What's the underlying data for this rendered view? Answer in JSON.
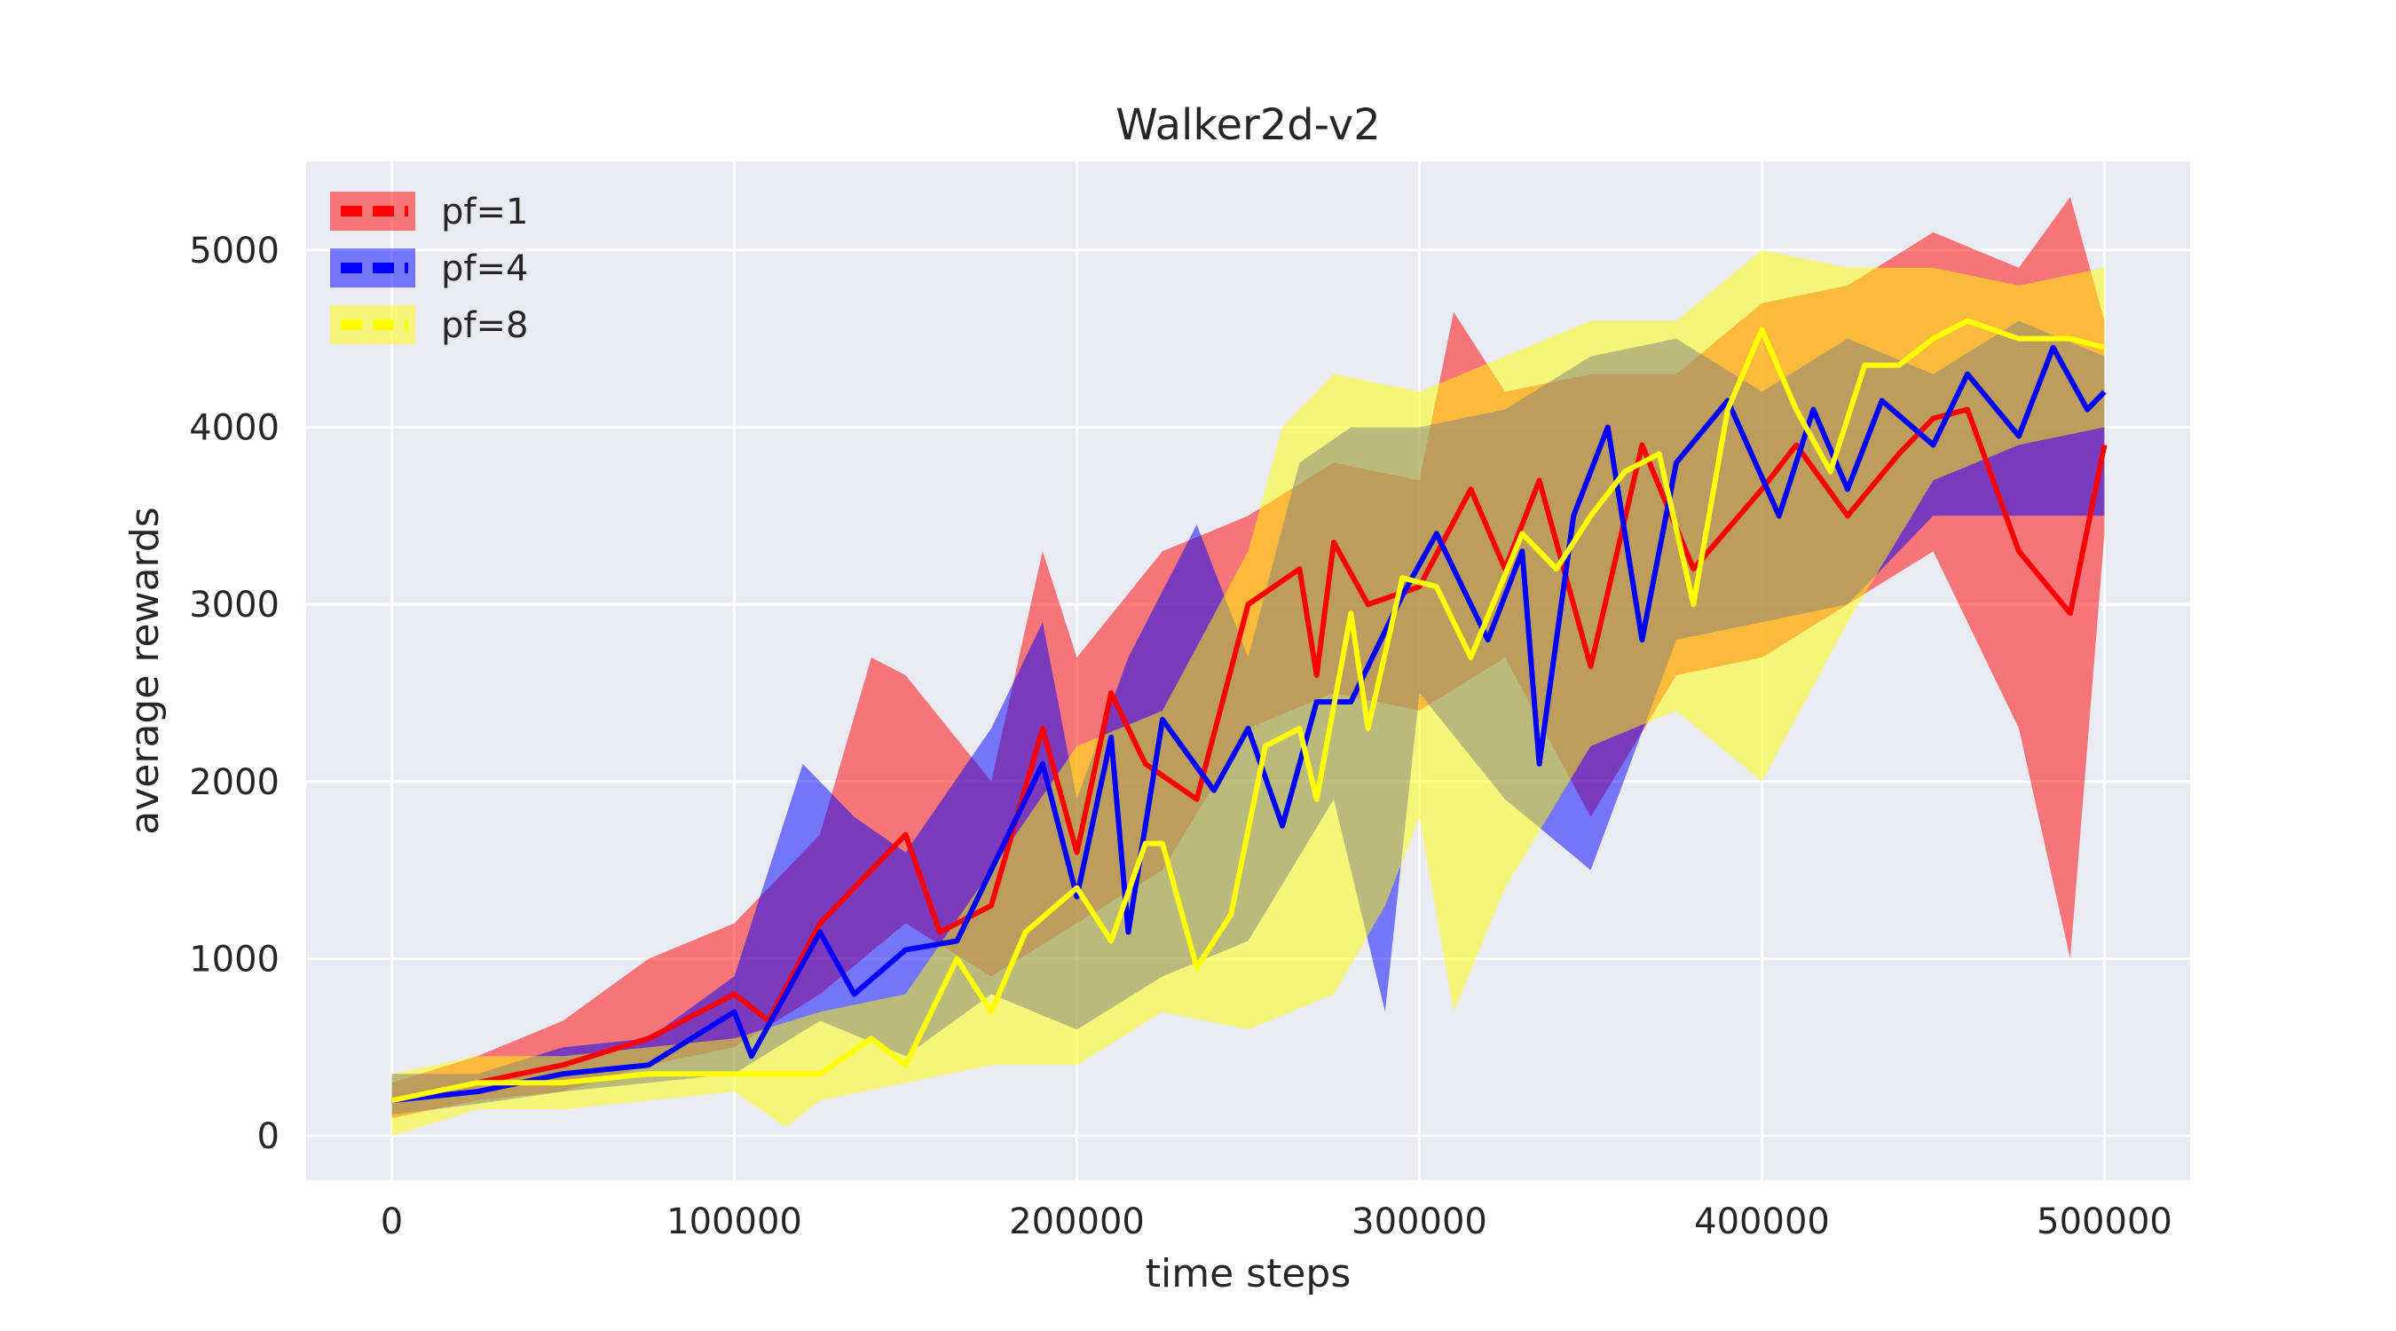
{
  "chart_data": {
    "type": "line",
    "title": "Walker2d-v2",
    "xlabel": "time steps",
    "ylabel": "average rewards",
    "xlim": [
      -25000,
      525000
    ],
    "ylim": [
      -250,
      5500
    ],
    "xticks": [
      0,
      100000,
      200000,
      300000,
      400000,
      500000
    ],
    "yticks": [
      0,
      1000,
      2000,
      3000,
      4000,
      5000
    ],
    "grid": true,
    "background": "#EAEAF2",
    "legend_position": "top-left",
    "series": [
      {
        "name": "pf=1",
        "color": "#FF0000",
        "band_color": "#FF0000",
        "points": [
          [
            0,
            200
          ],
          [
            25000,
            300
          ],
          [
            50000,
            400
          ],
          [
            75000,
            550
          ],
          [
            100000,
            800
          ],
          [
            110000,
            650
          ],
          [
            125000,
            1200
          ],
          [
            150000,
            1700
          ],
          [
            160000,
            1150
          ],
          [
            175000,
            1300
          ],
          [
            190000,
            2300
          ],
          [
            200000,
            1600
          ],
          [
            210000,
            2500
          ],
          [
            220000,
            2100
          ],
          [
            235000,
            1900
          ],
          [
            250000,
            3000
          ],
          [
            265000,
            3200
          ],
          [
            270000,
            2600
          ],
          [
            275000,
            3350
          ],
          [
            285000,
            3000
          ],
          [
            300000,
            3100
          ],
          [
            315000,
            3650
          ],
          [
            325000,
            3200
          ],
          [
            335000,
            3700
          ],
          [
            350000,
            2650
          ],
          [
            365000,
            3900
          ],
          [
            380000,
            3200
          ],
          [
            400000,
            3650
          ],
          [
            410000,
            3900
          ],
          [
            425000,
            3500
          ],
          [
            440000,
            3850
          ],
          [
            450000,
            4050
          ],
          [
            460000,
            4100
          ],
          [
            475000,
            3300
          ],
          [
            490000,
            2950
          ],
          [
            500000,
            3900
          ]
        ],
        "band_low": [
          [
            0,
            100
          ],
          [
            25000,
            200
          ],
          [
            50000,
            250
          ],
          [
            75000,
            400
          ],
          [
            100000,
            500
          ],
          [
            125000,
            800
          ],
          [
            150000,
            1200
          ],
          [
            175000,
            900
          ],
          [
            200000,
            1200
          ],
          [
            225000,
            1500
          ],
          [
            250000,
            2300
          ],
          [
            275000,
            2500
          ],
          [
            300000,
            2400
          ],
          [
            325000,
            2700
          ],
          [
            350000,
            1800
          ],
          [
            375000,
            2600
          ],
          [
            400000,
            2700
          ],
          [
            425000,
            3000
          ],
          [
            450000,
            3300
          ],
          [
            475000,
            2300
          ],
          [
            490000,
            1000
          ],
          [
            500000,
            3400
          ]
        ],
        "band_high": [
          [
            0,
            300
          ],
          [
            25000,
            450
          ],
          [
            50000,
            650
          ],
          [
            75000,
            1000
          ],
          [
            100000,
            1200
          ],
          [
            125000,
            1700
          ],
          [
            140000,
            2700
          ],
          [
            150000,
            2600
          ],
          [
            175000,
            2000
          ],
          [
            190000,
            3300
          ],
          [
            200000,
            2700
          ],
          [
            225000,
            3300
          ],
          [
            250000,
            3500
          ],
          [
            275000,
            3800
          ],
          [
            300000,
            3700
          ],
          [
            310000,
            4650
          ],
          [
            325000,
            4200
          ],
          [
            350000,
            4300
          ],
          [
            375000,
            4300
          ],
          [
            400000,
            4700
          ],
          [
            425000,
            4800
          ],
          [
            450000,
            5100
          ],
          [
            475000,
            4900
          ],
          [
            490000,
            5300
          ],
          [
            500000,
            4600
          ]
        ]
      },
      {
        "name": "pf=4",
        "color": "#0000FF",
        "band_color": "#0000FF",
        "points": [
          [
            0,
            200
          ],
          [
            25000,
            250
          ],
          [
            50000,
            350
          ],
          [
            75000,
            400
          ],
          [
            100000,
            700
          ],
          [
            105000,
            450
          ],
          [
            125000,
            1150
          ],
          [
            135000,
            800
          ],
          [
            150000,
            1050
          ],
          [
            165000,
            1100
          ],
          [
            175000,
            1500
          ],
          [
            190000,
            2100
          ],
          [
            200000,
            1350
          ],
          [
            210000,
            2250
          ],
          [
            215000,
            1150
          ],
          [
            225000,
            2350
          ],
          [
            240000,
            1950
          ],
          [
            250000,
            2300
          ],
          [
            260000,
            1750
          ],
          [
            270000,
            2450
          ],
          [
            280000,
            2450
          ],
          [
            295000,
            3050
          ],
          [
            305000,
            3400
          ],
          [
            320000,
            2800
          ],
          [
            330000,
            3300
          ],
          [
            335000,
            2100
          ],
          [
            345000,
            3500
          ],
          [
            355000,
            4000
          ],
          [
            365000,
            2800
          ],
          [
            375000,
            3800
          ],
          [
            390000,
            4150
          ],
          [
            405000,
            3500
          ],
          [
            415000,
            4100
          ],
          [
            425000,
            3650
          ],
          [
            435000,
            4150
          ],
          [
            450000,
            3900
          ],
          [
            460000,
            4300
          ],
          [
            475000,
            3950
          ],
          [
            485000,
            4450
          ],
          [
            495000,
            4100
          ],
          [
            500000,
            4200
          ]
        ],
        "band_low": [
          [
            0,
            120
          ],
          [
            25000,
            180
          ],
          [
            50000,
            250
          ],
          [
            75000,
            300
          ],
          [
            100000,
            350
          ],
          [
            125000,
            650
          ],
          [
            150000,
            450
          ],
          [
            175000,
            800
          ],
          [
            200000,
            600
          ],
          [
            225000,
            900
          ],
          [
            250000,
            1100
          ],
          [
            275000,
            1900
          ],
          [
            290000,
            700
          ],
          [
            300000,
            2500
          ],
          [
            325000,
            1900
          ],
          [
            350000,
            1500
          ],
          [
            375000,
            2800
          ],
          [
            400000,
            2900
          ],
          [
            425000,
            3000
          ],
          [
            450000,
            3500
          ],
          [
            475000,
            3500
          ],
          [
            500000,
            3500
          ]
        ],
        "band_high": [
          [
            0,
            350
          ],
          [
            25000,
            350
          ],
          [
            50000,
            500
          ],
          [
            75000,
            550
          ],
          [
            100000,
            900
          ],
          [
            120000,
            2100
          ],
          [
            135000,
            1800
          ],
          [
            150000,
            1600
          ],
          [
            175000,
            2300
          ],
          [
            190000,
            2900
          ],
          [
            200000,
            1900
          ],
          [
            215000,
            2700
          ],
          [
            235000,
            3450
          ],
          [
            250000,
            2700
          ],
          [
            265000,
            3800
          ],
          [
            280000,
            4000
          ],
          [
            300000,
            4000
          ],
          [
            325000,
            4100
          ],
          [
            350000,
            4400
          ],
          [
            375000,
            4500
          ],
          [
            400000,
            4200
          ],
          [
            425000,
            4500
          ],
          [
            450000,
            4300
          ],
          [
            475000,
            4600
          ],
          [
            500000,
            4400
          ]
        ]
      },
      {
        "name": "pf=8",
        "color": "#FFFF00",
        "band_color": "#FFFF00",
        "points": [
          [
            0,
            200
          ],
          [
            25000,
            300
          ],
          [
            50000,
            300
          ],
          [
            75000,
            350
          ],
          [
            100000,
            350
          ],
          [
            125000,
            350
          ],
          [
            140000,
            550
          ],
          [
            150000,
            400
          ],
          [
            165000,
            1000
          ],
          [
            175000,
            700
          ],
          [
            185000,
            1150
          ],
          [
            200000,
            1400
          ],
          [
            210000,
            1100
          ],
          [
            220000,
            1650
          ],
          [
            225000,
            1650
          ],
          [
            235000,
            950
          ],
          [
            245000,
            1250
          ],
          [
            255000,
            2200
          ],
          [
            265000,
            2300
          ],
          [
            270000,
            1900
          ],
          [
            280000,
            2950
          ],
          [
            285000,
            2300
          ],
          [
            295000,
            3150
          ],
          [
            305000,
            3100
          ],
          [
            315000,
            2700
          ],
          [
            330000,
            3400
          ],
          [
            340000,
            3200
          ],
          [
            350000,
            3500
          ],
          [
            360000,
            3750
          ],
          [
            370000,
            3850
          ],
          [
            380000,
            3000
          ],
          [
            390000,
            4100
          ],
          [
            400000,
            4550
          ],
          [
            410000,
            4100
          ],
          [
            420000,
            3750
          ],
          [
            430000,
            4350
          ],
          [
            440000,
            4350
          ],
          [
            450000,
            4500
          ],
          [
            460000,
            4600
          ],
          [
            475000,
            4500
          ],
          [
            490000,
            4500
          ],
          [
            500000,
            4450
          ]
        ],
        "band_low": [
          [
            0,
            0
          ],
          [
            25000,
            150
          ],
          [
            50000,
            150
          ],
          [
            75000,
            200
          ],
          [
            100000,
            250
          ],
          [
            115000,
            50
          ],
          [
            125000,
            200
          ],
          [
            150000,
            300
          ],
          [
            175000,
            400
          ],
          [
            200000,
            400
          ],
          [
            225000,
            700
          ],
          [
            250000,
            600
          ],
          [
            275000,
            800
          ],
          [
            290000,
            1300
          ],
          [
            300000,
            1800
          ],
          [
            310000,
            700
          ],
          [
            325000,
            1400
          ],
          [
            350000,
            2200
          ],
          [
            375000,
            2400
          ],
          [
            400000,
            2000
          ],
          [
            425000,
            2900
          ],
          [
            450000,
            3700
          ],
          [
            475000,
            3900
          ],
          [
            500000,
            4000
          ]
        ],
        "band_high": [
          [
            0,
            350
          ],
          [
            25000,
            450
          ],
          [
            50000,
            450
          ],
          [
            75000,
            500
          ],
          [
            100000,
            550
          ],
          [
            125000,
            700
          ],
          [
            150000,
            800
          ],
          [
            175000,
            1500
          ],
          [
            200000,
            2200
          ],
          [
            225000,
            2400
          ],
          [
            250000,
            3300
          ],
          [
            260000,
            4000
          ],
          [
            275000,
            4300
          ],
          [
            300000,
            4200
          ],
          [
            325000,
            4400
          ],
          [
            350000,
            4600
          ],
          [
            375000,
            4600
          ],
          [
            400000,
            5000
          ],
          [
            425000,
            4900
          ],
          [
            450000,
            4900
          ],
          [
            475000,
            4800
          ],
          [
            500000,
            4900
          ]
        ]
      }
    ]
  }
}
